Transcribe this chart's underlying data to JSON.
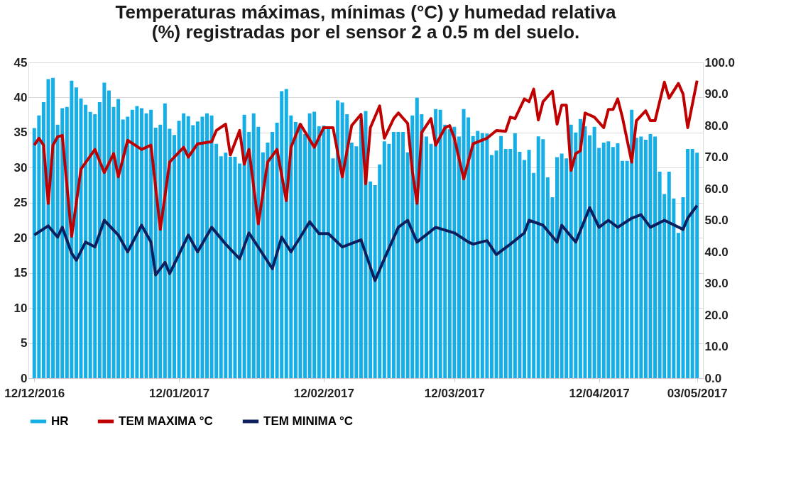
{
  "chart_data": {
    "type": "bar",
    "title": "Temperaturas máximas, mínimas (°C) y humedad relativa (%) registradas por el sensor 2 a 0.5 m del suelo.",
    "x": [
      "2016-12-12",
      "2016-12-13",
      "2016-12-14",
      "2016-12-15",
      "2016-12-16",
      "2016-12-17",
      "2016-12-18",
      "2016-12-19",
      "2016-12-20",
      "2016-12-21",
      "2016-12-22",
      "2016-12-23",
      "2016-12-24",
      "2016-12-25",
      "2016-12-26",
      "2016-12-27",
      "2016-12-28",
      "2016-12-29",
      "2016-12-30",
      "2016-12-31",
      "2017-01-01",
      "2017-01-02",
      "2017-01-03",
      "2017-01-04",
      "2017-01-05",
      "2017-01-06",
      "2017-01-07",
      "2017-01-08",
      "2017-01-09",
      "2017-01-10",
      "2017-01-11",
      "2017-01-12",
      "2017-01-13",
      "2017-01-14",
      "2017-01-15",
      "2017-01-16",
      "2017-01-17",
      "2017-01-18",
      "2017-01-19",
      "2017-01-20",
      "2017-01-21",
      "2017-01-22",
      "2017-01-23",
      "2017-01-24",
      "2017-01-25",
      "2017-01-26",
      "2017-01-27",
      "2017-01-28",
      "2017-01-29",
      "2017-01-30",
      "2017-01-31",
      "2017-02-01",
      "2017-02-02",
      "2017-02-03",
      "2017-02-04",
      "2017-02-05",
      "2017-02-06",
      "2017-02-07",
      "2017-02-08",
      "2017-02-09",
      "2017-02-10",
      "2017-02-11",
      "2017-02-12",
      "2017-02-13",
      "2017-02-14",
      "2017-02-15",
      "2017-02-16",
      "2017-02-17",
      "2017-02-18",
      "2017-02-19",
      "2017-02-20",
      "2017-02-21",
      "2017-02-22",
      "2017-02-23",
      "2017-02-24",
      "2017-02-25",
      "2017-02-26",
      "2017-02-27",
      "2017-02-28",
      "2017-03-01",
      "2017-03-02",
      "2017-03-03",
      "2017-03-04",
      "2017-03-05",
      "2017-03-06",
      "2017-03-07",
      "2017-03-08",
      "2017-03-09",
      "2017-03-10",
      "2017-03-11",
      "2017-03-12",
      "2017-03-13",
      "2017-03-14",
      "2017-03-15",
      "2017-03-16",
      "2017-03-17",
      "2017-03-18",
      "2017-03-19",
      "2017-03-20",
      "2017-03-21",
      "2017-03-22",
      "2017-03-23",
      "2017-03-24",
      "2017-03-25",
      "2017-03-26",
      "2017-03-27",
      "2017-03-28",
      "2017-03-29",
      "2017-03-30",
      "2017-03-31",
      "2017-04-01",
      "2017-04-02",
      "2017-04-03",
      "2017-04-04",
      "2017-04-05",
      "2017-04-06",
      "2017-04-07",
      "2017-04-08",
      "2017-04-09",
      "2017-04-10",
      "2017-04-11",
      "2017-04-12",
      "2017-04-13",
      "2017-04-14",
      "2017-04-15",
      "2017-04-16",
      "2017-04-17",
      "2017-04-18",
      "2017-04-19",
      "2017-04-20",
      "2017-04-21",
      "2017-04-22",
      "2017-04-23",
      "2017-04-24",
      "2017-04-25",
      "2017-04-26",
      "2017-04-27",
      "2017-04-28",
      "2017-04-29",
      "2017-04-30",
      "2017-05-01",
      "2017-05-02",
      "2017-05-03"
    ],
    "series": [
      {
        "name": "HR",
        "axis": "y2",
        "color": "#16aee6",
        "values": [
          79.2,
          83.2,
          87.4,
          94.7,
          95.1,
          80.3,
          85.5,
          85.9,
          94.2,
          92.1,
          88.6,
          86.6,
          84.3,
          83.6,
          87.4,
          93.6,
          91.1,
          85.9,
          88.4,
          81.9,
          82.8,
          85,
          86.2,
          85.5,
          83.9,
          85,
          79.3,
          80.3,
          87,
          79,
          77,
          81.5,
          83.9,
          83,
          80.1,
          81.3,
          82.8,
          83.9,
          83.2,
          74.2,
          70.3,
          71.4,
          70.1,
          70.1,
          68,
          83.4,
          78,
          83.9,
          79.6,
          71.5,
          74.6,
          78,
          80.9,
          90.9,
          91.6,
          83.2,
          81.1,
          80.6,
          77.3,
          83.9,
          84.4,
          79.8,
          80,
          79.6,
          69.6,
          88,
          87.3,
          83.6,
          74.6,
          73.4,
          81.9,
          84.6,
          62.3,
          61.1,
          67.7,
          75,
          74.2,
          78,
          78,
          78,
          71.5,
          83.2,
          88.8,
          83.6,
          76.5,
          74.2,
          85.2,
          85,
          80.3,
          78.8,
          79.6,
          76.5,
          85.2,
          82.6,
          76.7,
          78.3,
          77.6,
          77.5,
          70.7,
          72.1,
          76.7,
          72.6,
          72.6,
          77.6,
          71.7,
          69.1,
          72.3,
          65,
          76.6,
          75.7,
          63.6,
          57.3,
          70,
          71.1,
          69.6,
          80.3,
          77.8,
          82.1,
          79.8,
          76.9,
          79.6,
          72.9,
          74.6,
          75,
          73.2,
          74.4,
          68.8,
          68.8,
          85,
          76.1,
          76.5,
          75.5,
          77.3,
          76.5,
          65.4,
          58.3,
          65.4,
          56.9,
          46,
          57.3,
          72.6,
          72.6,
          71.4
        ]
      },
      {
        "name": "TEM MAXIMA °C",
        "type": "line",
        "color": "#c00000",
        "x": [
          "2016-12-12",
          "2016-12-13",
          "2016-12-14",
          "2016-12-15",
          "2016-12-16",
          "2016-12-17",
          "2016-12-18",
          "2016-12-20",
          "2016-12-22",
          "2016-12-25",
          "2016-12-27",
          "2016-12-29",
          "2016-12-30",
          "2017-01-01",
          "2017-01-04",
          "2017-01-06",
          "2017-01-08",
          "2017-01-10",
          "2017-01-13",
          "2017-01-14",
          "2017-01-16",
          "2017-01-19",
          "2017-01-20",
          "2017-01-22",
          "2017-01-23",
          "2017-01-25",
          "2017-01-26",
          "2017-01-27",
          "2017-01-29",
          "2017-01-31",
          "2017-02-02",
          "2017-02-04",
          "2017-02-05",
          "2017-02-07",
          "2017-02-10",
          "2017-02-12",
          "2017-02-14",
          "2017-02-16",
          "2017-02-18",
          "2017-02-20",
          "2017-02-21",
          "2017-02-22",
          "2017-02-24",
          "2017-02-25",
          "2017-02-27",
          "2017-02-28",
          "2017-03-02",
          "2017-03-03",
          "2017-03-04",
          "2017-03-05",
          "2017-03-07",
          "2017-03-08",
          "2017-03-10",
          "2017-03-11",
          "2017-03-12",
          "2017-03-14",
          "2017-03-16",
          "2017-03-19",
          "2017-03-21",
          "2017-03-23",
          "2017-03-24",
          "2017-03-25",
          "2017-03-27",
          "2017-03-28",
          "2017-03-29",
          "2017-03-30",
          "2017-03-31",
          "2017-04-02",
          "2017-04-03",
          "2017-04-04",
          "2017-04-05",
          "2017-04-06",
          "2017-04-07",
          "2017-04-08",
          "2017-04-09",
          "2017-04-11",
          "2017-04-13",
          "2017-04-14",
          "2017-04-15",
          "2017-04-16",
          "2017-04-17",
          "2017-04-19",
          "2017-04-20",
          "2017-04-22",
          "2017-04-23",
          "2017-04-24",
          "2017-04-26",
          "2017-04-27",
          "2017-04-29",
          "2017-04-30",
          "2017-05-01",
          "2017-05-03"
        ],
        "values": [
          33.2,
          34.2,
          33.2,
          24.9,
          33.2,
          34.4,
          34.6,
          20.2,
          29.8,
          32.6,
          29.3,
          32.0,
          28.7,
          33.9,
          32.6,
          33.2,
          21.2,
          30.8,
          32.9,
          31.5,
          33.4,
          33.7,
          35.3,
          36.2,
          31.8,
          35.3,
          30.5,
          32.6,
          22,
          30.8,
          32.6,
          25.3,
          32.9,
          36.2,
          32.9,
          35.7,
          35.7,
          28.7,
          36,
          37.6,
          27.7,
          35.7,
          38.8,
          34.2,
          37,
          37.8,
          36.3,
          29.5,
          24.9,
          35,
          37,
          33.2,
          35.7,
          36,
          34.2,
          28.4,
          33.4,
          34.2,
          35.3,
          35.2,
          37.2,
          37,
          39.8,
          39.4,
          41.2,
          36.8,
          39.4,
          40.9,
          36.2,
          38.9,
          38.9,
          29.6,
          32,
          32.4,
          37.8,
          37.2,
          35.7,
          38.3,
          38.3,
          39.8,
          37.2,
          30.8,
          36.7,
          38.1,
          36.7,
          36.7,
          42.2,
          39.9,
          42,
          40.5,
          35.7,
          42.4
        ]
      },
      {
        "name": "TEM MINIMA °C",
        "type": "line",
        "color": "#0d1f5c",
        "x": [
          "2016-12-12",
          "2016-12-15",
          "2016-12-17",
          "2016-12-18",
          "2016-12-20",
          "2016-12-21",
          "2016-12-23",
          "2016-12-25",
          "2016-12-27",
          "2016-12-30",
          "2017-01-01",
          "2017-01-04",
          "2017-01-06",
          "2017-01-07",
          "2017-01-09",
          "2017-01-10",
          "2017-01-14",
          "2017-01-16",
          "2017-01-19",
          "2017-01-22",
          "2017-01-25",
          "2017-01-27",
          "2017-02-01",
          "2017-02-03",
          "2017-02-05",
          "2017-02-07",
          "2017-02-09",
          "2017-02-11",
          "2017-02-13",
          "2017-02-16",
          "2017-02-20",
          "2017-02-23",
          "2017-02-25",
          "2017-02-28",
          "2017-03-02",
          "2017-03-04",
          "2017-03-08",
          "2017-03-12",
          "2017-03-15",
          "2017-03-16",
          "2017-03-19",
          "2017-03-21",
          "2017-03-24",
          "2017-03-27",
          "2017-03-28",
          "2017-03-31",
          "2017-04-03",
          "2017-04-04",
          "2017-04-07",
          "2017-04-10",
          "2017-04-12",
          "2017-04-14",
          "2017-04-16",
          "2017-04-19",
          "2017-04-21",
          "2017-04-23",
          "2017-04-26",
          "2017-04-30",
          "2017-05-01",
          "2017-05-03"
        ],
        "values": [
          20.4,
          21.7,
          20.1,
          21.5,
          17.8,
          16.8,
          19.4,
          18.7,
          22.5,
          20.4,
          18,
          21.8,
          19.4,
          14.7,
          16.5,
          14.9,
          20.4,
          18,
          21.5,
          19.1,
          17,
          20.7,
          15.6,
          20.1,
          18,
          20.1,
          22.3,
          20.6,
          20.6,
          18.7,
          19.7,
          13.9,
          17,
          21.5,
          22.5,
          19.4,
          21.5,
          20.7,
          19.4,
          19.1,
          19.6,
          17.6,
          19.1,
          20.7,
          22.5,
          21.8,
          19.4,
          21.8,
          19.4,
          24.3,
          21.5,
          22.5,
          21.5,
          22.8,
          23.3,
          21.5,
          22.5,
          21.2,
          22.8,
          24.6
        ]
      }
    ],
    "xlim": [
      "2016-12-11T12:00",
      "2017-05-03T12:00"
    ],
    "xticks": [
      {
        "value": "2016-12-12",
        "label": "12/12/2016"
      },
      {
        "value": "2017-01-12",
        "label": "12/01/2017"
      },
      {
        "value": "2017-02-12",
        "label": "12/02/2017"
      },
      {
        "value": "2017-03-12",
        "label": "12/03/2017"
      },
      {
        "value": "2017-04-12",
        "label": "12/04/2017"
      },
      {
        "value": "2017-05-03",
        "label": "03/05/2017"
      }
    ],
    "ylim": [
      0,
      45
    ],
    "yticks": [
      0,
      5,
      10,
      15,
      20,
      25,
      30,
      35,
      40,
      45
    ],
    "y2lim": [
      0,
      100
    ],
    "y2ticks": [
      {
        "value": 0,
        "label": "0.0"
      },
      {
        "value": 10,
        "label": "10.0"
      },
      {
        "value": 20,
        "label": "20.0"
      },
      {
        "value": 30,
        "label": "30.0"
      },
      {
        "value": 40,
        "label": "40.0"
      },
      {
        "value": 50,
        "label": "50.0"
      },
      {
        "value": 60,
        "label": "60.0"
      },
      {
        "value": 70,
        "label": "70.0"
      },
      {
        "value": 80,
        "label": "80.0"
      },
      {
        "value": 90,
        "label": "90.0"
      },
      {
        "value": 100,
        "label": "100.0"
      }
    ],
    "grid": "y",
    "legend": "bottom"
  }
}
